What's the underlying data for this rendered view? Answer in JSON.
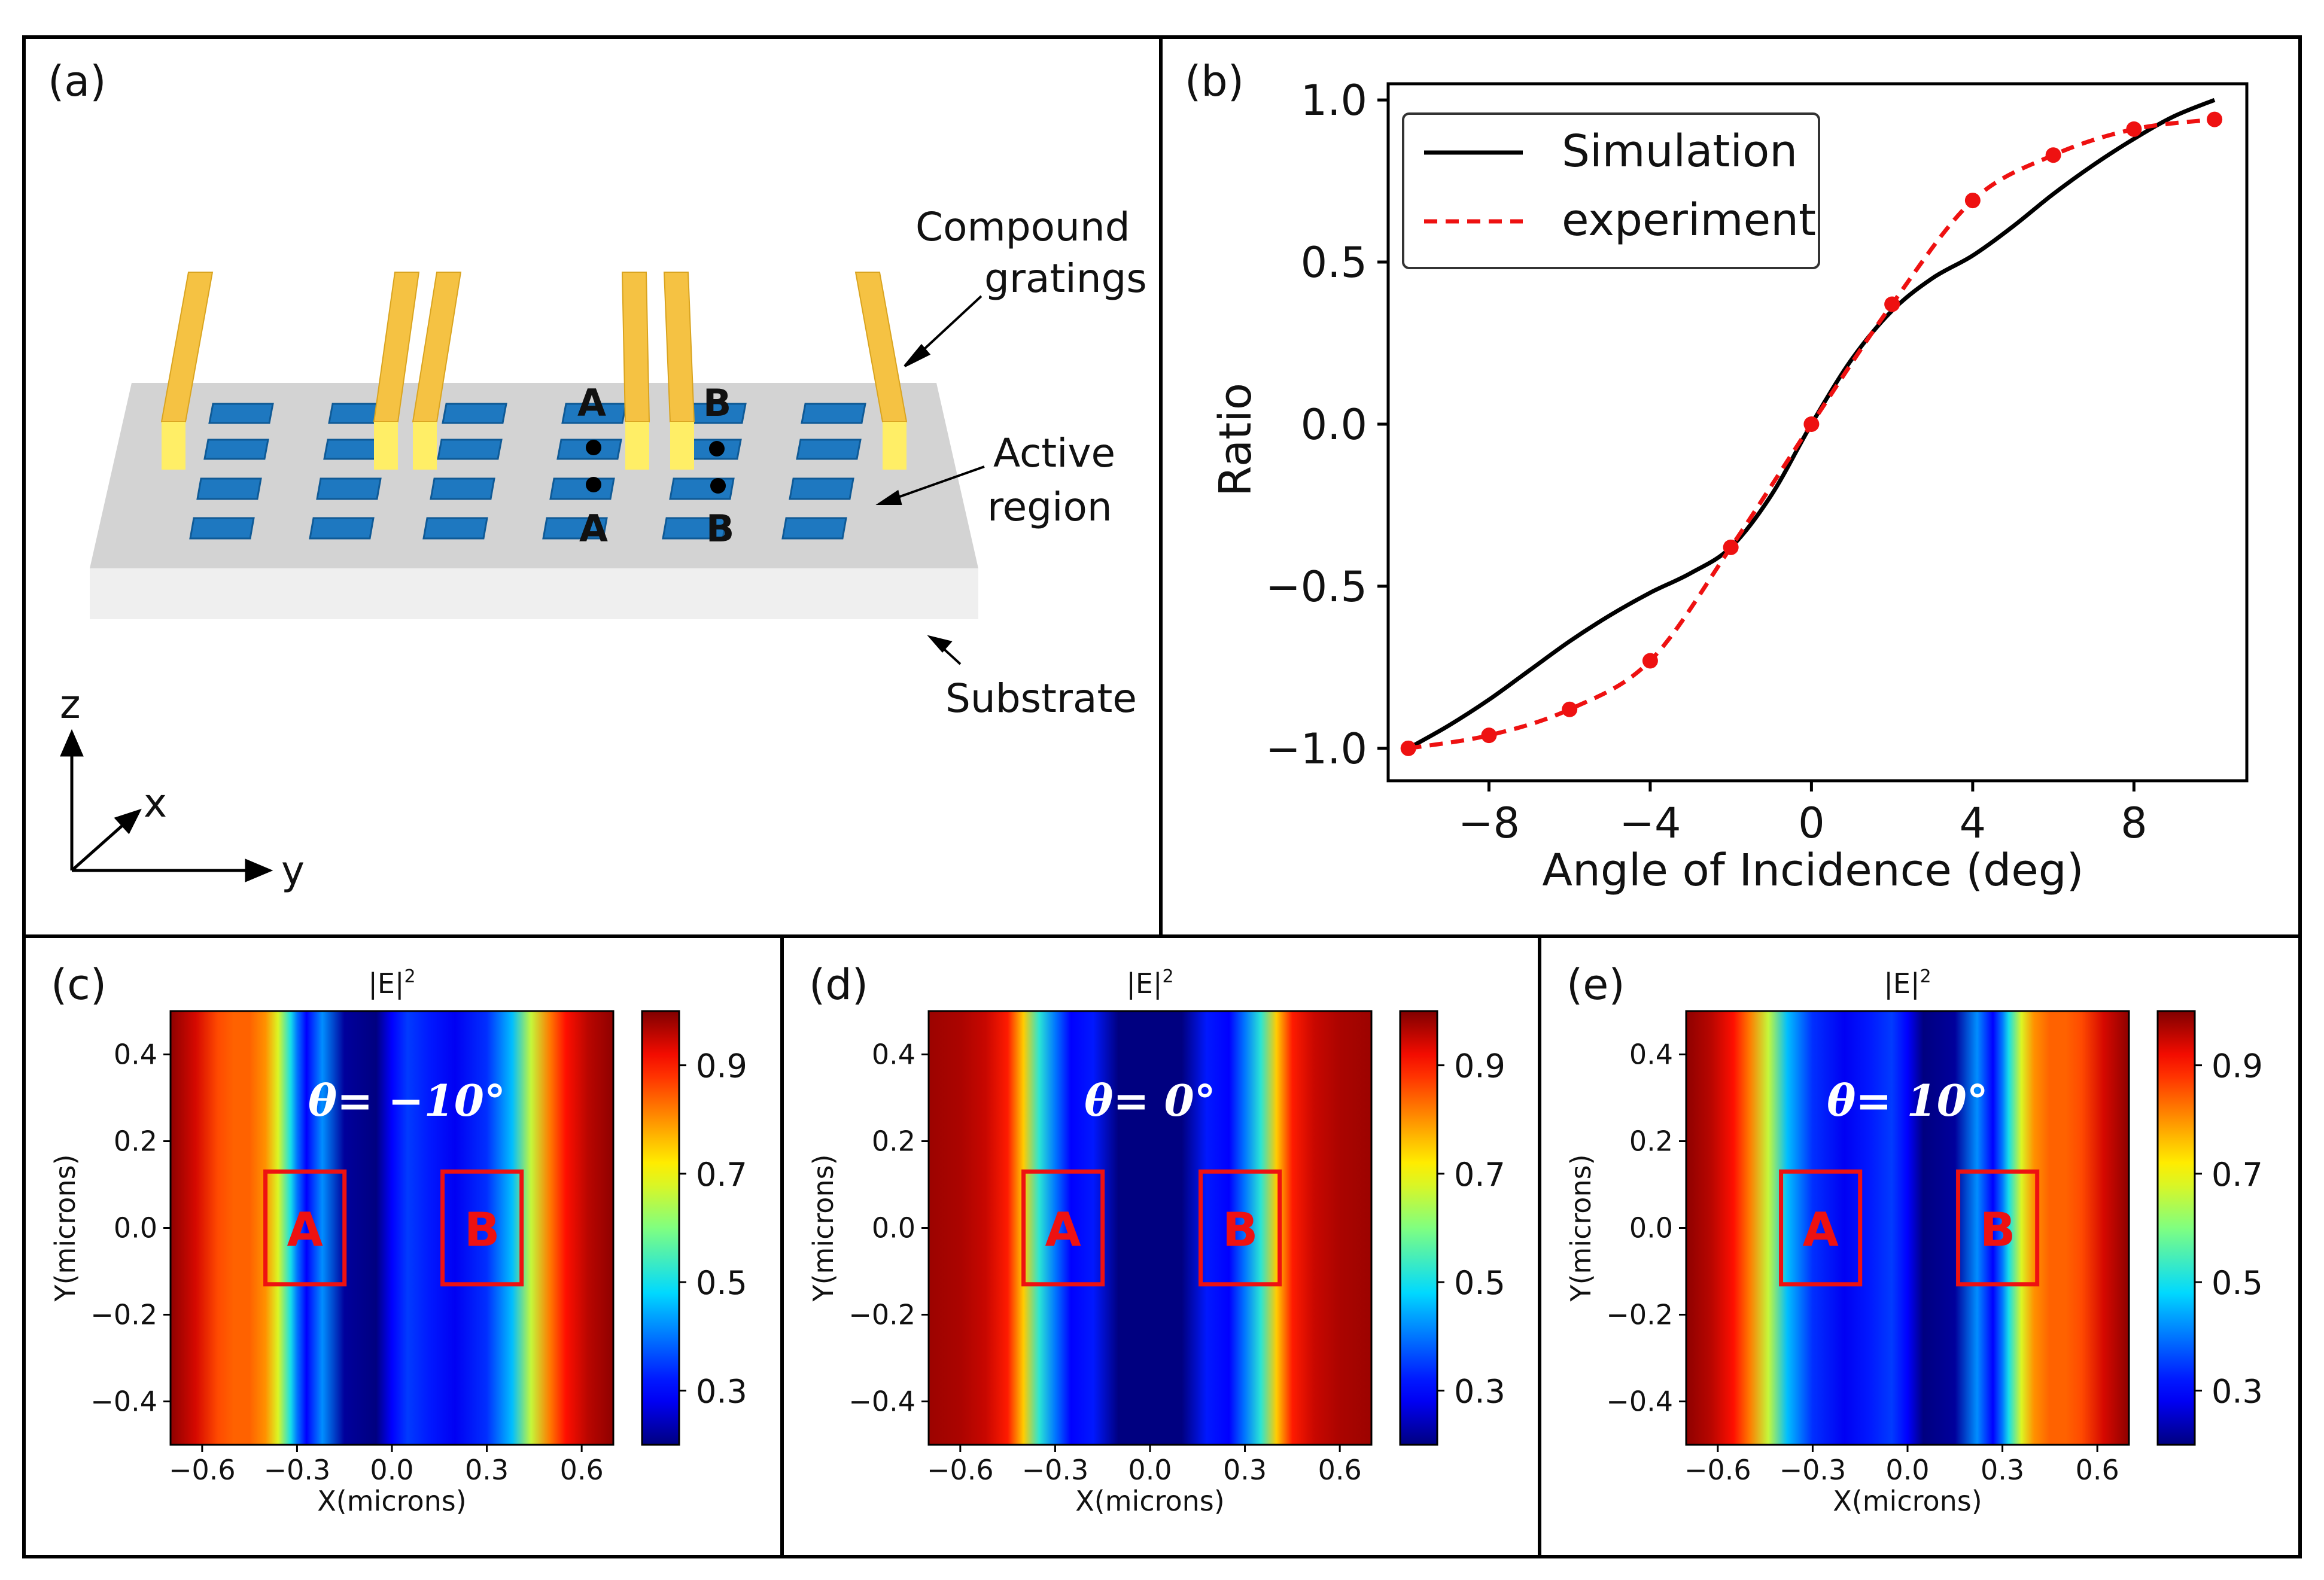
{
  "panel_a": {
    "label": "(a)",
    "grating_label_line1": "Compound",
    "grating_label_line2": "gratings",
    "active_label_line1": "Active",
    "active_label_line2": "region",
    "substrate_label": "Substrate",
    "point_a": "A",
    "point_b": "B",
    "axis_z": "z",
    "axis_x": "x",
    "axis_y": "y",
    "colors": {
      "grating": "#F5C243",
      "grating_top": "#FFEE66",
      "active": "#1E78C0",
      "substrate_top": "#d3d3d3",
      "substrate_side": "#efefef"
    }
  },
  "panel_b": {
    "label": "(b)"
  },
  "panels_field": [
    {
      "label": "(c)",
      "title": "|E|",
      "title_sup": "2",
      "theta_text": "θ= −10°",
      "box_a": "A",
      "box_b": "B",
      "colorbar_ticks": [
        "0.9",
        "0.7",
        "0.5",
        "0.3"
      ]
    },
    {
      "label": "(d)",
      "title": "|E|",
      "title_sup": "2",
      "theta_text": "θ= 0°",
      "box_a": "A",
      "box_b": "B",
      "colorbar_ticks": [
        "0.9",
        "0.7",
        "0.5",
        "0.3"
      ]
    },
    {
      "label": "(e)",
      "title": "|E|",
      "title_sup": "2",
      "theta_text": "θ= 10°",
      "box_a": "A",
      "box_b": "B",
      "colorbar_ticks": [
        "0.9",
        "0.7",
        "0.5",
        "0.3"
      ]
    }
  ],
  "chart_data": [
    {
      "type": "line",
      "title": "",
      "xlabel": "Angle of Incidence (deg)",
      "ylabel": "Ratio",
      "xlim": [
        -10.5,
        10.8
      ],
      "ylim": [
        -1.1,
        1.05
      ],
      "xticks": [
        -8,
        -4,
        0,
        4,
        8
      ],
      "xtick_labels": [
        "−8",
        "−4",
        "0",
        "4",
        "8"
      ],
      "yticks": [
        1.0,
        0.5,
        0.0,
        -0.5,
        -1.0
      ],
      "ytick_labels": [
        "1.0",
        "0.5",
        "0.0",
        "−0.5",
        "−1.0"
      ],
      "legend_position": "top-left",
      "series": [
        {
          "name": "Simulation",
          "style": "solid",
          "color": "#000000",
          "x": [
            -10,
            -9,
            -8,
            -7,
            -6,
            -5,
            -4,
            -3,
            -2,
            -1,
            0,
            1,
            2,
            3,
            4,
            5,
            6,
            7,
            8,
            9,
            10
          ],
          "y": [
            -1.0,
            -0.93,
            -0.85,
            -0.76,
            -0.67,
            -0.59,
            -0.52,
            -0.46,
            -0.38,
            -0.22,
            0.0,
            0.2,
            0.35,
            0.45,
            0.52,
            0.61,
            0.71,
            0.8,
            0.88,
            0.95,
            1.0
          ]
        },
        {
          "name": "experiment",
          "style": "dashed",
          "color": "#EE1111",
          "markers": true,
          "x": [
            -10,
            -8,
            -6,
            -4,
            -2,
            0,
            2,
            4,
            6,
            8,
            10
          ],
          "y": [
            -1.0,
            -0.96,
            -0.88,
            -0.73,
            -0.38,
            0.0,
            0.37,
            0.69,
            0.83,
            0.91,
            0.94
          ]
        }
      ]
    },
    {
      "type": "heatmap",
      "panel": "(c)",
      "title": "|E|^2",
      "xlabel": "X(microns)",
      "ylabel": "Y(microns)",
      "xlim": [
        -0.7,
        0.7
      ],
      "ylim": [
        -0.5,
        0.5
      ],
      "xticks": [
        -0.6,
        -0.3,
        0.0,
        0.3,
        0.6
      ],
      "xtick_labels": [
        "−0.6",
        "−0.3",
        "0.0",
        "0.3",
        "0.6"
      ],
      "yticks": [
        0.4,
        0.2,
        0.0,
        -0.2,
        -0.4
      ],
      "ytick_labels": [
        "0.4",
        "0.2",
        "0.0",
        "−0.2",
        "−0.4"
      ],
      "color_range": [
        0.2,
        1.0
      ],
      "colorbar_ticks": [
        0.9,
        0.7,
        0.5,
        0.3
      ],
      "theta_deg": -10,
      "profile_x": [
        -0.7,
        -0.62,
        -0.55,
        -0.5,
        -0.45,
        -0.4,
        -0.36,
        -0.32,
        -0.3,
        -0.27,
        -0.22,
        -0.15,
        -0.05,
        0.0,
        0.05,
        0.12,
        0.2,
        0.3,
        0.38,
        0.44,
        0.5,
        0.55,
        0.62,
        0.7
      ],
      "profile_v": [
        0.99,
        0.94,
        0.86,
        0.84,
        0.84,
        0.8,
        0.68,
        0.5,
        0.4,
        0.3,
        0.42,
        0.22,
        0.18,
        0.3,
        0.35,
        0.32,
        0.28,
        0.34,
        0.46,
        0.66,
        0.82,
        0.91,
        0.96,
        0.99
      ],
      "box_a_x": [
        -0.4,
        -0.15
      ],
      "box_a_y": [
        -0.13,
        0.13
      ],
      "box_b_x": [
        0.16,
        0.41
      ],
      "box_b_y": [
        -0.13,
        0.13
      ]
    },
    {
      "type": "heatmap",
      "panel": "(d)",
      "title": "|E|^2",
      "xlabel": "X(microns)",
      "ylabel": "Y(microns)",
      "xlim": [
        -0.7,
        0.7
      ],
      "ylim": [
        -0.5,
        0.5
      ],
      "xticks": [
        -0.6,
        -0.3,
        0.0,
        0.3,
        0.6
      ],
      "xtick_labels": [
        "−0.6",
        "−0.3",
        "0.0",
        "0.3",
        "0.6"
      ],
      "yticks": [
        0.4,
        0.2,
        0.0,
        -0.2,
        -0.4
      ],
      "ytick_labels": [
        "0.4",
        "0.2",
        "0.0",
        "−0.2",
        "−0.4"
      ],
      "color_range": [
        0.2,
        1.0
      ],
      "colorbar_ticks": [
        0.9,
        0.7,
        0.5,
        0.3
      ],
      "theta_deg": 0,
      "profile_x": [
        -0.7,
        -0.6,
        -0.52,
        -0.45,
        -0.4,
        -0.35,
        -0.3,
        -0.25,
        -0.18,
        -0.1,
        -0.03,
        0.03,
        0.1,
        0.18,
        0.25,
        0.3,
        0.35,
        0.4,
        0.45,
        0.52,
        0.6,
        0.7
      ],
      "profile_v": [
        0.98,
        0.97,
        0.95,
        0.9,
        0.75,
        0.52,
        0.4,
        0.3,
        0.32,
        0.2,
        0.12,
        0.12,
        0.2,
        0.32,
        0.3,
        0.4,
        0.52,
        0.75,
        0.9,
        0.95,
        0.97,
        0.98
      ],
      "box_a_x": [
        -0.4,
        -0.15
      ],
      "box_a_y": [
        -0.13,
        0.13
      ],
      "box_b_x": [
        0.16,
        0.41
      ],
      "box_b_y": [
        -0.13,
        0.13
      ]
    },
    {
      "type": "heatmap",
      "panel": "(e)",
      "title": "|E|^2",
      "xlabel": "X(microns)",
      "ylabel": "Y(microns)",
      "xlim": [
        -0.7,
        0.7
      ],
      "ylim": [
        -0.5,
        0.5
      ],
      "xticks": [
        -0.6,
        -0.3,
        0.0,
        0.3,
        0.6
      ],
      "xtick_labels": [
        "−0.6",
        "−0.3",
        "0.0",
        "0.3",
        "0.6"
      ],
      "yticks": [
        0.4,
        0.2,
        0.0,
        -0.2,
        -0.4
      ],
      "ytick_labels": [
        "0.4",
        "0.2",
        "0.0",
        "−0.2",
        "−0.4"
      ],
      "color_range": [
        0.2,
        1.0
      ],
      "colorbar_ticks": [
        0.9,
        0.7,
        0.5,
        0.3
      ],
      "theta_deg": 10,
      "profile_x": [
        -0.7,
        -0.62,
        -0.55,
        -0.5,
        -0.44,
        -0.38,
        -0.3,
        -0.2,
        -0.12,
        -0.05,
        0.0,
        0.05,
        0.15,
        0.22,
        0.27,
        0.3,
        0.32,
        0.36,
        0.4,
        0.45,
        0.5,
        0.55,
        0.62,
        0.7
      ],
      "profile_v": [
        0.99,
        0.96,
        0.91,
        0.82,
        0.66,
        0.46,
        0.34,
        0.28,
        0.32,
        0.35,
        0.3,
        0.18,
        0.22,
        0.42,
        0.3,
        0.4,
        0.5,
        0.68,
        0.8,
        0.84,
        0.84,
        0.86,
        0.94,
        0.99
      ],
      "box_a_x": [
        -0.4,
        -0.15
      ],
      "box_a_y": [
        -0.13,
        0.13
      ],
      "box_b_x": [
        0.16,
        0.41
      ],
      "box_b_y": [
        -0.13,
        0.13
      ]
    }
  ]
}
